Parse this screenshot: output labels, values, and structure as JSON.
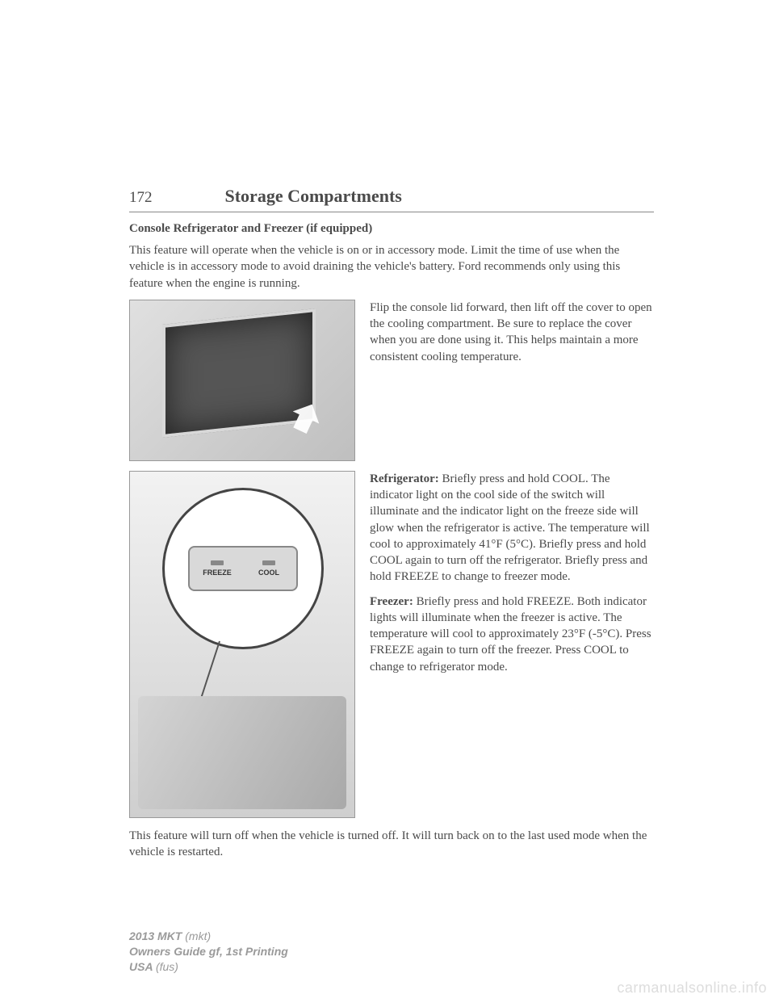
{
  "header": {
    "page_number": "172",
    "chapter_title": "Storage Compartments"
  },
  "section_title": "Console Refrigerator and Freezer (if equipped)",
  "intro": "This feature will operate when the vehicle is on or in accessory mode. Limit the time of use when the vehicle is in accessory mode to avoid draining the vehicle's battery. Ford recommends only using this feature when the engine is running.",
  "block1_text": "Flip the console lid forward, then lift off the cover to open the cooling compartment. Be sure to replace the cover when you are done using it. This helps maintain a more consistent cooling temperature.",
  "switch": {
    "left_label": "FREEZE",
    "right_label": "COOL"
  },
  "refrigerator_label": "Refrigerator:",
  "refrigerator_text": " Briefly press and hold COOL. The indicator light on the cool side of the switch will illuminate and the indicator light on the freeze side will glow when the refrigerator is active. The temperature will cool to approximately 41°F (5°C). Briefly press and hold COOL again to turn off the refrigerator. Briefly press and hold FREEZE to change to freezer mode.",
  "freezer_label": "Freezer:",
  "freezer_text": " Briefly press and hold FREEZE. Both indicator lights will illuminate when the freezer is active. The temperature will cool to approximately 23°F (-5°C). Press FREEZE again to turn off the freezer. Press COOL to change to refrigerator mode.",
  "closing": "This feature will turn off when the vehicle is turned off. It will turn back on to the last used mode when the vehicle is restarted.",
  "footer": {
    "line1a": "2013 MKT ",
    "line1b": "(mkt)",
    "line2": "Owners Guide gf, 1st Printing",
    "line3a": "USA ",
    "line3b": "(fus)"
  },
  "watermark": "carmanualsonline.info"
}
